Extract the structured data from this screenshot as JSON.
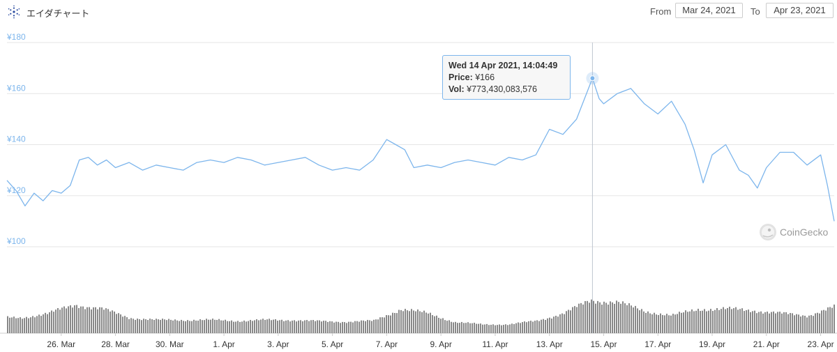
{
  "header": {
    "title": "エイダチャート",
    "from_label": "From",
    "from_value": "Mar 24, 2021",
    "to_label": "To",
    "to_value": "Apr 23, 2021"
  },
  "tooltip": {
    "date": "Wed 14 Apr 2021, 14:04:49",
    "price_label": "Price:",
    "price_value": "¥166",
    "vol_label": "Vol:",
    "vol_value": "¥773,430,083,576"
  },
  "watermark": {
    "text": "CoinGecko"
  },
  "colors": {
    "price_line": "#7cb5ec",
    "axis_text": "#7cb5ec",
    "volume_bar": "#888888",
    "grid": "#e6e6e6"
  },
  "chart_data": {
    "type": "line",
    "title": "",
    "xlabel": "",
    "ylabel": "",
    "ylim": [
      100,
      180
    ],
    "yticks": [
      "¥100",
      "¥120",
      "¥140",
      "¥160",
      "¥180"
    ],
    "ytick_values": [
      100,
      120,
      140,
      160,
      180
    ],
    "xlim": [
      "2021-03-24",
      "2021-04-23T12:00"
    ],
    "xticks": [
      "26. Mar",
      "28. Mar",
      "30. Mar",
      "1. Apr",
      "3. Apr",
      "5. Apr",
      "7. Apr",
      "9. Apr",
      "11. Apr",
      "13. Apr",
      "15. Apr",
      "17. Apr",
      "19. Apr",
      "21. Apr",
      "23. Apr"
    ],
    "xtick_dates": [
      "2021-03-26",
      "2021-03-28",
      "2021-03-30",
      "2021-04-01",
      "2021-04-03",
      "2021-04-05",
      "2021-04-07",
      "2021-04-09",
      "2021-04-11",
      "2021-04-13",
      "2021-04-15",
      "2021-04-17",
      "2021-04-19",
      "2021-04-21",
      "2021-04-23"
    ],
    "grid": true,
    "series": [
      {
        "price": [
          [
            "2021-03-24T00:00",
            126
          ],
          [
            "2021-03-24T08:00",
            122
          ],
          [
            "2021-03-24T16:00",
            116
          ],
          [
            "2021-03-25T00:00",
            121
          ],
          [
            "2021-03-25T08:00",
            118
          ],
          [
            "2021-03-25T16:00",
            122
          ],
          [
            "2021-03-26T00:00",
            121
          ],
          [
            "2021-03-26T08:00",
            124
          ],
          [
            "2021-03-26T16:00",
            134
          ],
          [
            "2021-03-27T00:00",
            135
          ],
          [
            "2021-03-27T08:00",
            132
          ],
          [
            "2021-03-27T16:00",
            134
          ],
          [
            "2021-03-28T00:00",
            131
          ],
          [
            "2021-03-28T12:00",
            133
          ],
          [
            "2021-03-29T00:00",
            130
          ],
          [
            "2021-03-29T12:00",
            132
          ],
          [
            "2021-03-30T00:00",
            131
          ],
          [
            "2021-03-30T12:00",
            130
          ],
          [
            "2021-03-31T00:00",
            133
          ],
          [
            "2021-03-31T12:00",
            134
          ],
          [
            "2021-04-01T00:00",
            133
          ],
          [
            "2021-04-01T12:00",
            135
          ],
          [
            "2021-04-02T00:00",
            134
          ],
          [
            "2021-04-02T12:00",
            132
          ],
          [
            "2021-04-03T00:00",
            133
          ],
          [
            "2021-04-03T12:00",
            134
          ],
          [
            "2021-04-04T00:00",
            135
          ],
          [
            "2021-04-04T12:00",
            132
          ],
          [
            "2021-04-05T00:00",
            130
          ],
          [
            "2021-04-05T12:00",
            131
          ],
          [
            "2021-04-06T00:00",
            130
          ],
          [
            "2021-04-06T12:00",
            134
          ],
          [
            "2021-04-07T00:00",
            142
          ],
          [
            "2021-04-07T08:00",
            140
          ],
          [
            "2021-04-07T16:00",
            138
          ],
          [
            "2021-04-08T00:00",
            131
          ],
          [
            "2021-04-08T12:00",
            132
          ],
          [
            "2021-04-09T00:00",
            131
          ],
          [
            "2021-04-09T12:00",
            133
          ],
          [
            "2021-04-10T00:00",
            134
          ],
          [
            "2021-04-10T12:00",
            133
          ],
          [
            "2021-04-11T00:00",
            132
          ],
          [
            "2021-04-11T12:00",
            135
          ],
          [
            "2021-04-12T00:00",
            134
          ],
          [
            "2021-04-12T12:00",
            136
          ],
          [
            "2021-04-13T00:00",
            146
          ],
          [
            "2021-04-13T12:00",
            144
          ],
          [
            "2021-04-14T00:00",
            150
          ],
          [
            "2021-04-14T14:05",
            166
          ],
          [
            "2021-04-14T20:00",
            158
          ],
          [
            "2021-04-15T00:00",
            156
          ],
          [
            "2021-04-15T12:00",
            160
          ],
          [
            "2021-04-16T00:00",
            162
          ],
          [
            "2021-04-16T12:00",
            156
          ],
          [
            "2021-04-17T00:00",
            152
          ],
          [
            "2021-04-17T12:00",
            157
          ],
          [
            "2021-04-18T00:00",
            148
          ],
          [
            "2021-04-18T08:00",
            138
          ],
          [
            "2021-04-18T16:00",
            125
          ],
          [
            "2021-04-19T00:00",
            136
          ],
          [
            "2021-04-19T12:00",
            140
          ],
          [
            "2021-04-20T00:00",
            130
          ],
          [
            "2021-04-20T08:00",
            128
          ],
          [
            "2021-04-20T16:00",
            123
          ],
          [
            "2021-04-21T00:00",
            131
          ],
          [
            "2021-04-21T12:00",
            137
          ],
          [
            "2021-04-22T00:00",
            137
          ],
          [
            "2021-04-22T12:00",
            132
          ],
          [
            "2021-04-23T00:00",
            136
          ],
          [
            "2021-04-23T06:00",
            124
          ],
          [
            "2021-04-23T12:00",
            110
          ]
        ],
        "volume_relative": [
          [
            "2021-03-24",
            0.35
          ],
          [
            "2021-03-25",
            0.45
          ],
          [
            "2021-03-26",
            0.65
          ],
          [
            "2021-03-27",
            0.55
          ],
          [
            "2021-03-28",
            0.35
          ],
          [
            "2021-03-29",
            0.3
          ],
          [
            "2021-03-30",
            0.3
          ],
          [
            "2021-03-31",
            0.3
          ],
          [
            "2021-04-01",
            0.28
          ],
          [
            "2021-04-02",
            0.3
          ],
          [
            "2021-04-03",
            0.3
          ],
          [
            "2021-04-04",
            0.27
          ],
          [
            "2021-04-05",
            0.26
          ],
          [
            "2021-04-06",
            0.28
          ],
          [
            "2021-04-07",
            0.55
          ],
          [
            "2021-04-08",
            0.45
          ],
          [
            "2021-04-09",
            0.25
          ],
          [
            "2021-04-10",
            0.2
          ],
          [
            "2021-04-11",
            0.2
          ],
          [
            "2021-04-12",
            0.28
          ],
          [
            "2021-04-13",
            0.45
          ],
          [
            "2021-04-14",
            0.75
          ],
          [
            "2021-04-15",
            0.7
          ],
          [
            "2021-04-16",
            0.5
          ],
          [
            "2021-04-17",
            0.4
          ],
          [
            "2021-04-18",
            0.55
          ],
          [
            "2021-04-19",
            0.55
          ],
          [
            "2021-04-20",
            0.52
          ],
          [
            "2021-04-21",
            0.45
          ],
          [
            "2021-04-22",
            0.4
          ],
          [
            "2021-04-23",
            0.6
          ]
        ]
      }
    ],
    "highlight": {
      "date": "2021-04-14T14:05",
      "price": 166
    }
  }
}
